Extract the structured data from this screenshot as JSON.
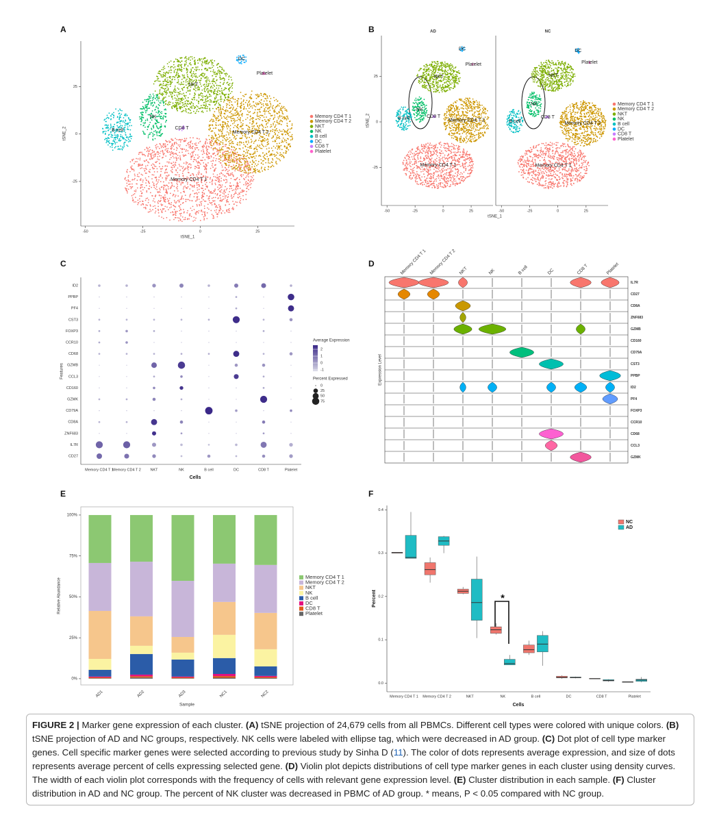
{
  "chart_data": [
    {
      "panel_label": "A",
      "type": "scatter",
      "xlabel": "tSNE_1",
      "ylabel": "tSNE_2",
      "xlim": [
        -52,
        41
      ],
      "ylim": [
        -48.5,
        49
      ],
      "xticks": [
        -50,
        -25,
        0,
        25
      ],
      "yticks": [
        -25,
        0,
        25
      ],
      "series": [
        {
          "name": "Memory CD4 T 1",
          "color": "#F8766D"
        },
        {
          "name": "Memory CD4 T 2",
          "color": "#CD9600"
        },
        {
          "name": "NKT",
          "color": "#7CAE00"
        },
        {
          "name": "NK",
          "color": "#00BE67"
        },
        {
          "name": "B cell",
          "color": "#00BFC4"
        },
        {
          "name": "DC",
          "color": "#00A9FF"
        },
        {
          "name": "CD8 T",
          "color": "#C77CFF"
        },
        {
          "name": "Platelet",
          "color": "#FF61CC"
        }
      ],
      "x": [
        -5,
        22,
        -3,
        -20.5,
        -36,
        18,
        -8,
        28
      ],
      "y": [
        -24,
        1,
        26,
        9,
        2,
        39.5,
        3,
        32
      ]
    },
    {
      "panel_label": "B",
      "type": "scatter",
      "xlabel": "tSNE_1",
      "ylabel": "tSNE_2",
      "xlim": [
        -55,
        44.5
      ],
      "ylim": [
        -45.9,
        47.4
      ],
      "xticks": [
        -50,
        -25,
        0,
        25
      ],
      "yticks": [
        -25,
        0,
        25
      ],
      "series": [
        {
          "name": "Memory CD4 T 1",
          "color": "#F8766D"
        },
        {
          "name": "Memory CD4 T 2",
          "color": "#CD9600"
        },
        {
          "name": "NKT",
          "color": "#7CAE00"
        },
        {
          "name": "NK",
          "color": "#00BE67"
        },
        {
          "name": "B cell",
          "color": "#00BFC4"
        },
        {
          "name": "DC",
          "color": "#00A9FF"
        },
        {
          "name": "CD8 T",
          "color": "#C77CFF"
        },
        {
          "name": "Platelet",
          "color": "#FF61CC"
        }
      ],
      "panels": [
        {
          "title": "AD",
          "x": [
            -4.3,
            21,
            -4,
            -21,
            -35,
            17,
            -8.5,
            27
          ],
          "y": [
            -23.7,
            0.8,
            24.8,
            6.8,
            2,
            40,
            3,
            31.6
          ]
        },
        {
          "title": "NC",
          "x": [
            -4,
            22,
            -4,
            -21,
            -38,
            18,
            -9,
            28
          ],
          "y": [
            -24,
            -0.8,
            25.5,
            9.8,
            0.4,
            39,
            2.6,
            32.7
          ]
        }
      ]
    },
    {
      "panel_label": "C",
      "type": "dot",
      "xlabel": "Cells",
      "ylabel": "Features",
      "categories": [
        "Memory CD4 T 1",
        "Memory CD4 T 2",
        "NKT",
        "NK",
        "B cell",
        "DC",
        "CD8 T",
        "Platelet"
      ],
      "features": [
        "ID2",
        "PPBP",
        "PF4",
        "CST3",
        "FOXP3",
        "CCR10",
        "CD68",
        "GZMB",
        "CCL3",
        "CD160",
        "GZMK",
        "CD79A",
        "CD8A",
        "ZNF683",
        "IL7R",
        "CD27"
      ],
      "pct": [
        [
          5,
          5,
          15,
          20,
          5,
          20,
          30,
          5
        ],
        [
          0,
          0,
          0,
          0,
          0,
          2,
          0,
          60
        ],
        [
          0,
          0,
          0,
          0,
          0,
          2,
          0,
          50
        ],
        [
          2,
          2,
          2,
          2,
          2,
          70,
          2,
          10
        ],
        [
          2,
          5,
          2,
          0,
          0,
          0,
          2,
          0
        ],
        [
          2,
          5,
          0,
          0,
          0,
          0,
          0,
          0
        ],
        [
          2,
          2,
          2,
          2,
          2,
          50,
          2,
          10
        ],
        [
          0,
          0,
          40,
          75,
          0,
          10,
          10,
          0
        ],
        [
          0,
          0,
          2,
          5,
          0,
          30,
          2,
          0
        ],
        [
          0,
          0,
          5,
          15,
          0,
          0,
          2,
          0
        ],
        [
          2,
          2,
          10,
          2,
          0,
          0,
          70,
          0
        ],
        [
          0,
          0,
          0,
          0,
          80,
          5,
          0,
          5
        ],
        [
          2,
          2,
          50,
          10,
          0,
          0,
          10,
          0
        ],
        [
          0,
          0,
          20,
          2,
          0,
          0,
          2,
          0
        ],
        [
          70,
          70,
          20,
          5,
          2,
          5,
          50,
          15
        ],
        [
          40,
          30,
          15,
          2,
          10,
          2,
          10,
          15
        ]
      ],
      "avg_exp": [
        [
          -0.4,
          -0.4,
          0.3,
          0.6,
          -0.4,
          0.8,
          1.2,
          -0.3
        ],
        [
          -0.3,
          -0.3,
          -0.3,
          -0.3,
          -0.3,
          -0.2,
          -0.3,
          2.5
        ],
        [
          -0.3,
          -0.3,
          -0.3,
          -0.3,
          -0.3,
          -0.2,
          -0.3,
          2.5
        ],
        [
          -0.4,
          -0.4,
          -0.4,
          -0.4,
          -0.3,
          2.5,
          -0.4,
          0.3
        ],
        [
          -0.2,
          0.2,
          -0.2,
          -0.3,
          -0.3,
          -0.3,
          -0.2,
          -0.3
        ],
        [
          -0.2,
          0.3,
          -0.3,
          -0.3,
          -0.3,
          -0.3,
          -0.3,
          -0.3
        ],
        [
          -0.4,
          -0.4,
          -0.4,
          -0.3,
          -0.3,
          2.5,
          -0.4,
          0.2
        ],
        [
          -0.5,
          -0.5,
          1.3,
          2.2,
          -0.5,
          0.2,
          0.3,
          -0.5
        ],
        [
          -0.3,
          -0.3,
          -0.2,
          0.5,
          -0.3,
          2.2,
          -0.2,
          -0.3
        ],
        [
          -0.3,
          -0.3,
          0.5,
          2.3,
          -0.3,
          -0.3,
          -0.2,
          -0.3
        ],
        [
          -0.4,
          -0.3,
          0.6,
          -0.3,
          -0.5,
          -0.5,
          2.5,
          -0.5
        ],
        [
          -0.3,
          -0.3,
          -0.3,
          -0.3,
          2.6,
          0.1,
          -0.3,
          0.5
        ],
        [
          -0.4,
          -0.4,
          2.3,
          0.6,
          -0.5,
          -0.5,
          0.8,
          -0.5
        ],
        [
          -0.3,
          -0.3,
          2.4,
          0.1,
          -0.3,
          -0.3,
          0.1,
          -0.3
        ],
        [
          1.3,
          1.4,
          0.2,
          -0.6,
          -0.8,
          -0.5,
          0.9,
          -0.3
        ],
        [
          1.2,
          1,
          0.5,
          -0.6,
          0.2,
          -0.5,
          0.4,
          0.1
        ]
      ],
      "color_title": "Average Expression",
      "color_low": "#d8d8e6",
      "color_high": "#3a2888",
      "color_lim": [
        -1.2,
        2.6
      ],
      "color_ticks": [
        2,
        1,
        0,
        -1
      ],
      "size_title": "Percent Expressed",
      "size_ticks": [
        0,
        25,
        50,
        75
      ]
    },
    {
      "panel_label": "D",
      "type": "violin",
      "ylabel": "Expression Level",
      "categories": [
        "Memory CD4 T 1",
        "Memory CD4 T 2",
        "NKT",
        "NK",
        "B cell",
        "DC",
        "CD8 T",
        "Platelet"
      ],
      "genes": [
        "IL7R",
        "CD27",
        "CD8A",
        "ZNF683",
        "GZMB",
        "CD160",
        "CD79A",
        "CST3",
        "PPBP",
        "ID2",
        "PF4",
        "FOXP3",
        "CCR10",
        "CD68",
        "CCL3",
        "GZMK"
      ],
      "colors": [
        "#F8766D",
        "#E58700",
        "#C99800",
        "#A3A500",
        "#6BB100",
        "#00BA38",
        "#00BF7D",
        "#00C0AF",
        "#00BCD8",
        "#00B0F6",
        "#619CFF",
        "#B983FF",
        "#E76BF3",
        "#FD61D1",
        "#FF67A4",
        "#F2579D"
      ],
      "density": [
        [
          1,
          1,
          0.3,
          0,
          0,
          0,
          0.7,
          0.6
        ],
        [
          0.4,
          0.4,
          0,
          0,
          0,
          0,
          0,
          0
        ],
        [
          0,
          0,
          0.5,
          0,
          0,
          0,
          0,
          0
        ],
        [
          0,
          0,
          0.2,
          0,
          0,
          0,
          0,
          0
        ],
        [
          0,
          0,
          0.6,
          0.9,
          0,
          0,
          0.3,
          0
        ],
        [
          0,
          0,
          0,
          0,
          0,
          0,
          0,
          0
        ],
        [
          0,
          0,
          0,
          0,
          0.8,
          0,
          0,
          0
        ],
        [
          0,
          0,
          0,
          0,
          0,
          0.8,
          0,
          0
        ],
        [
          0,
          0,
          0,
          0,
          0,
          0,
          0,
          0.7
        ],
        [
          0,
          0,
          0.2,
          0.3,
          0,
          0.3,
          0.4,
          0.3
        ],
        [
          0,
          0,
          0,
          0,
          0,
          0,
          0,
          0.5
        ],
        [
          0,
          0,
          0,
          0,
          0,
          0,
          0,
          0
        ],
        [
          0,
          0,
          0,
          0,
          0,
          0,
          0,
          0
        ],
        [
          0,
          0,
          0,
          0,
          0,
          0.8,
          0,
          0
        ],
        [
          0,
          0,
          0,
          0,
          0,
          0.4,
          0,
          0
        ],
        [
          0,
          0,
          0,
          0,
          0,
          0,
          0.7,
          0
        ]
      ]
    },
    {
      "panel_label": "E",
      "type": "bar",
      "stacked": true,
      "xlabel": "Sample",
      "ylabel": "Relative Abundance",
      "categories": [
        "AD1",
        "AD2",
        "AD3",
        "NC1",
        "NC2"
      ],
      "ylim": [
        -3.8,
        105
      ],
      "yticks": [
        {
          "value": 0,
          "label": "0%"
        },
        {
          "value": 25,
          "label": "25%"
        },
        {
          "value": 50,
          "label": "50%"
        },
        {
          "value": 75,
          "label": "75%"
        },
        {
          "value": 100,
          "label": "100%"
        }
      ],
      "series": [
        {
          "name": "Memory CD4 T 1",
          "color": "#8cc872",
          "values": [
            29.3,
            28.5,
            40.2,
            29.7,
            30.5
          ]
        },
        {
          "name": "Memory CD4 T 2",
          "color": "#c8b6d9",
          "values": [
            29.3,
            33.4,
            34.3,
            23.4,
            29.3
          ]
        },
        {
          "name": "NKT",
          "color": "#f6c68c",
          "values": [
            29.3,
            18,
            9.6,
            20.1,
            22.2
          ]
        },
        {
          "name": "NK",
          "color": "#fbf3a2",
          "values": [
            6.7,
            5,
            4.2,
            14.2,
            10.5
          ]
        },
        {
          "name": "B cell",
          "color": "#2b5ca8",
          "values": [
            4.1,
            12.6,
            10.4,
            9.7,
            5.8
          ]
        },
        {
          "name": "DC",
          "color": "#e4117f",
          "values": [
            0.5,
            1,
            0.5,
            1.3,
            0.7
          ]
        },
        {
          "name": "CD8 T",
          "color": "#e05a1a",
          "values": [
            0.5,
            0.8,
            0.5,
            1,
            0.6
          ]
        },
        {
          "name": "Platelet",
          "color": "#666666",
          "values": [
            0.3,
            0.7,
            0.3,
            0.6,
            0.4
          ]
        }
      ]
    },
    {
      "panel_label": "F",
      "type": "box",
      "xlabel": "Cells",
      "ylabel": "Percent",
      "annotation": "*",
      "categories": [
        "Memory CD4 T 1",
        "Memory CD4 T 2",
        "NKT",
        "NK",
        "B cell",
        "DC",
        "CD8 T",
        "Platelet"
      ],
      "ylim": [
        -0.02,
        0.41
      ],
      "yticks": [
        {
          "value": 0,
          "label": "0.0"
        },
        0.1,
        0.2,
        0.3,
        0.4
      ],
      "series": [
        {
          "name": "NC",
          "color": "#f0766d",
          "min": [
            0.3,
            0.232,
            0.205,
            0.112,
            0.065,
            0.01,
            0.01,
            0.002
          ],
          "q1": [
            0.3,
            0.25,
            0.207,
            0.115,
            0.07,
            0.012,
            0.01,
            0.002
          ],
          "median": [
            0.301,
            0.262,
            0.212,
            0.123,
            0.077,
            0.013,
            0.01,
            0.003
          ],
          "q3": [
            0.302,
            0.278,
            0.217,
            0.13,
            0.088,
            0.016,
            0.011,
            0.003
          ],
          "max": [
            0.302,
            0.29,
            0.222,
            0.138,
            0.098,
            0.018,
            0.011,
            0.003
          ]
        },
        {
          "name": "AD",
          "color": "#1fbcc4",
          "min": [
            0.288,
            0.3,
            0.104,
            0.042,
            0.04,
            0.011,
            0.003,
            0.002
          ],
          "q1": [
            0.288,
            0.318,
            0.145,
            0.042,
            0.072,
            0.012,
            0.005,
            0.004
          ],
          "median": [
            0.29,
            0.328,
            0.186,
            0.045,
            0.09,
            0.013,
            0.006,
            0.007
          ],
          "q3": [
            0.341,
            0.338,
            0.24,
            0.055,
            0.11,
            0.014,
            0.008,
            0.009
          ],
          "max": [
            0.395,
            0.34,
            0.292,
            0.065,
            0.12,
            0.015,
            0.009,
            0.014
          ]
        }
      ]
    }
  ],
  "caption": {
    "parts": [
      "FIGURE 2 |",
      " Marker gene expression of each cluster. ",
      "(A)",
      " tSNE projection of 24,679 cells from all PBMCs. Different cell types were colored with unique colors. ",
      "(B)",
      " tSNE projection of AD and NC groups, respectively. NK cells were labeled with ellipse tag, which were decreased in AD group. ",
      "(C)",
      " Dot plot of cell type marker genes. Cell specific marker genes were selected according to previous study by Sinha D (",
      "11",
      "). The color of dots represents average expression, and size of dots represents average percent of cells expressing selected gene. ",
      "(D)",
      " Violin plot depicts distributions of cell type marker genes in each cluster using density curves. The width of each violin plot corresponds with the frequency of cells with relevant gene expression level. ",
      "(E)",
      " Cluster distribution in each sample. ",
      "(F)",
      " Cluster distribution in AD and NC group. The percent of NK cluster was decreased in PBMC of AD group. * means, P < 0.05 compared with NC group."
    ]
  }
}
